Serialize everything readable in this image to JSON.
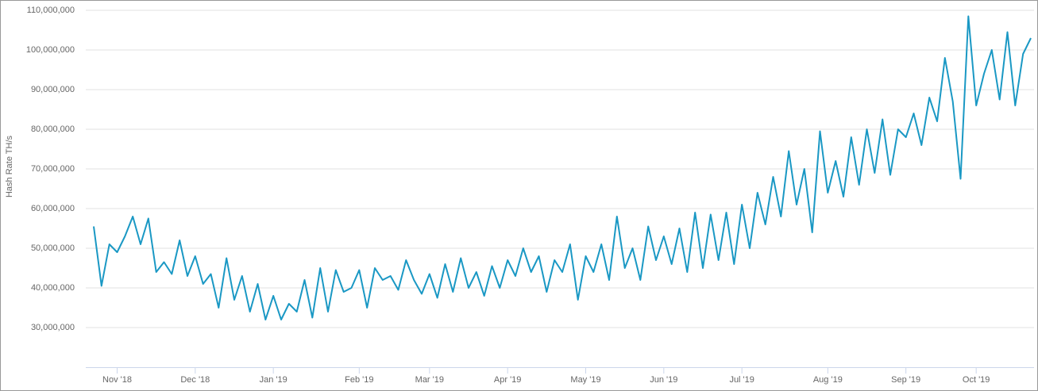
{
  "chart_data": {
    "type": "line",
    "y_label": "Hash Rate TH/s",
    "categories": [
      null,
      null,
      null,
      "Nov '18",
      null,
      null,
      null,
      null,
      null,
      null,
      null,
      null,
      null,
      "Dec '18",
      null,
      null,
      null,
      null,
      null,
      null,
      null,
      null,
      null,
      "Jan '19",
      null,
      null,
      null,
      null,
      null,
      null,
      null,
      null,
      null,
      null,
      "Feb '19",
      null,
      null,
      null,
      null,
      null,
      null,
      null,
      null,
      "Mar '19",
      null,
      null,
      null,
      null,
      null,
      null,
      null,
      null,
      null,
      "Apr '19",
      null,
      null,
      null,
      null,
      null,
      null,
      null,
      null,
      null,
      "May '19",
      null,
      null,
      null,
      null,
      null,
      null,
      null,
      null,
      null,
      "Jun '19",
      null,
      null,
      null,
      null,
      null,
      null,
      null,
      null,
      null,
      "Jul '19",
      null,
      null,
      null,
      null,
      null,
      null,
      null,
      null,
      null,
      null,
      "Aug '19",
      null,
      null,
      null,
      null,
      null,
      null,
      null,
      null,
      null,
      "Sep '19",
      null,
      null,
      null,
      null,
      null,
      null,
      null,
      null,
      "Oct '19",
      null,
      null,
      null,
      null,
      null,
      null,
      null
    ],
    "series": [
      {
        "color": "#1a98c4",
        "values": [
          55500000,
          40500000,
          51000000,
          49000000,
          53000000,
          58000000,
          51000000,
          57500000,
          44000000,
          46500000,
          43500000,
          52000000,
          43000000,
          48000000,
          41000000,
          43500000,
          35000000,
          47500000,
          37000000,
          43000000,
          34000000,
          41000000,
          32000000,
          38000000,
          32000000,
          36000000,
          34000000,
          42000000,
          32500000,
          45000000,
          34000000,
          44500000,
          39000000,
          40000000,
          44500000,
          35000000,
          45000000,
          42000000,
          43000000,
          39500000,
          47000000,
          42000000,
          38500000,
          43500000,
          37500000,
          46000000,
          39000000,
          47500000,
          40000000,
          44000000,
          38000000,
          45500000,
          40000000,
          47000000,
          43000000,
          50000000,
          44000000,
          48000000,
          39000000,
          47000000,
          44000000,
          51000000,
          37000000,
          48000000,
          44000000,
          51000000,
          42000000,
          58000000,
          45000000,
          50000000,
          42000000,
          55500000,
          47000000,
          53000000,
          46000000,
          55000000,
          44000000,
          59000000,
          45000000,
          58500000,
          47000000,
          59000000,
          46000000,
          61000000,
          50000000,
          64000000,
          56000000,
          68000000,
          58000000,
          74500000,
          61000000,
          70000000,
          54000000,
          79500000,
          64000000,
          72000000,
          63000000,
          78000000,
          66000000,
          80000000,
          69000000,
          82500000,
          68500000,
          80000000,
          78000000,
          84000000,
          76000000,
          88000000,
          82000000,
          98000000,
          87000000,
          67500000,
          108500000,
          86000000,
          94000000,
          100000000,
          87500000,
          104500000,
          86000000,
          99000000,
          103000000
        ]
      }
    ],
    "ylim": [
      20000000,
      110000000
    ],
    "yticks": [
      {
        "value": 30000000,
        "label": "30,000,000"
      },
      {
        "value": 40000000,
        "label": "40,000,000"
      },
      {
        "value": 50000000,
        "label": "50,000,000"
      },
      {
        "value": 60000000,
        "label": "60,000,000"
      },
      {
        "value": 70000000,
        "label": "70,000,000"
      },
      {
        "value": 80000000,
        "label": "80,000,000"
      },
      {
        "value": 90000000,
        "label": "90,000,000"
      },
      {
        "value": 100000000,
        "label": "100,000,000"
      },
      {
        "value": 110000000,
        "label": "110,000,000"
      }
    ],
    "grid": true
  }
}
